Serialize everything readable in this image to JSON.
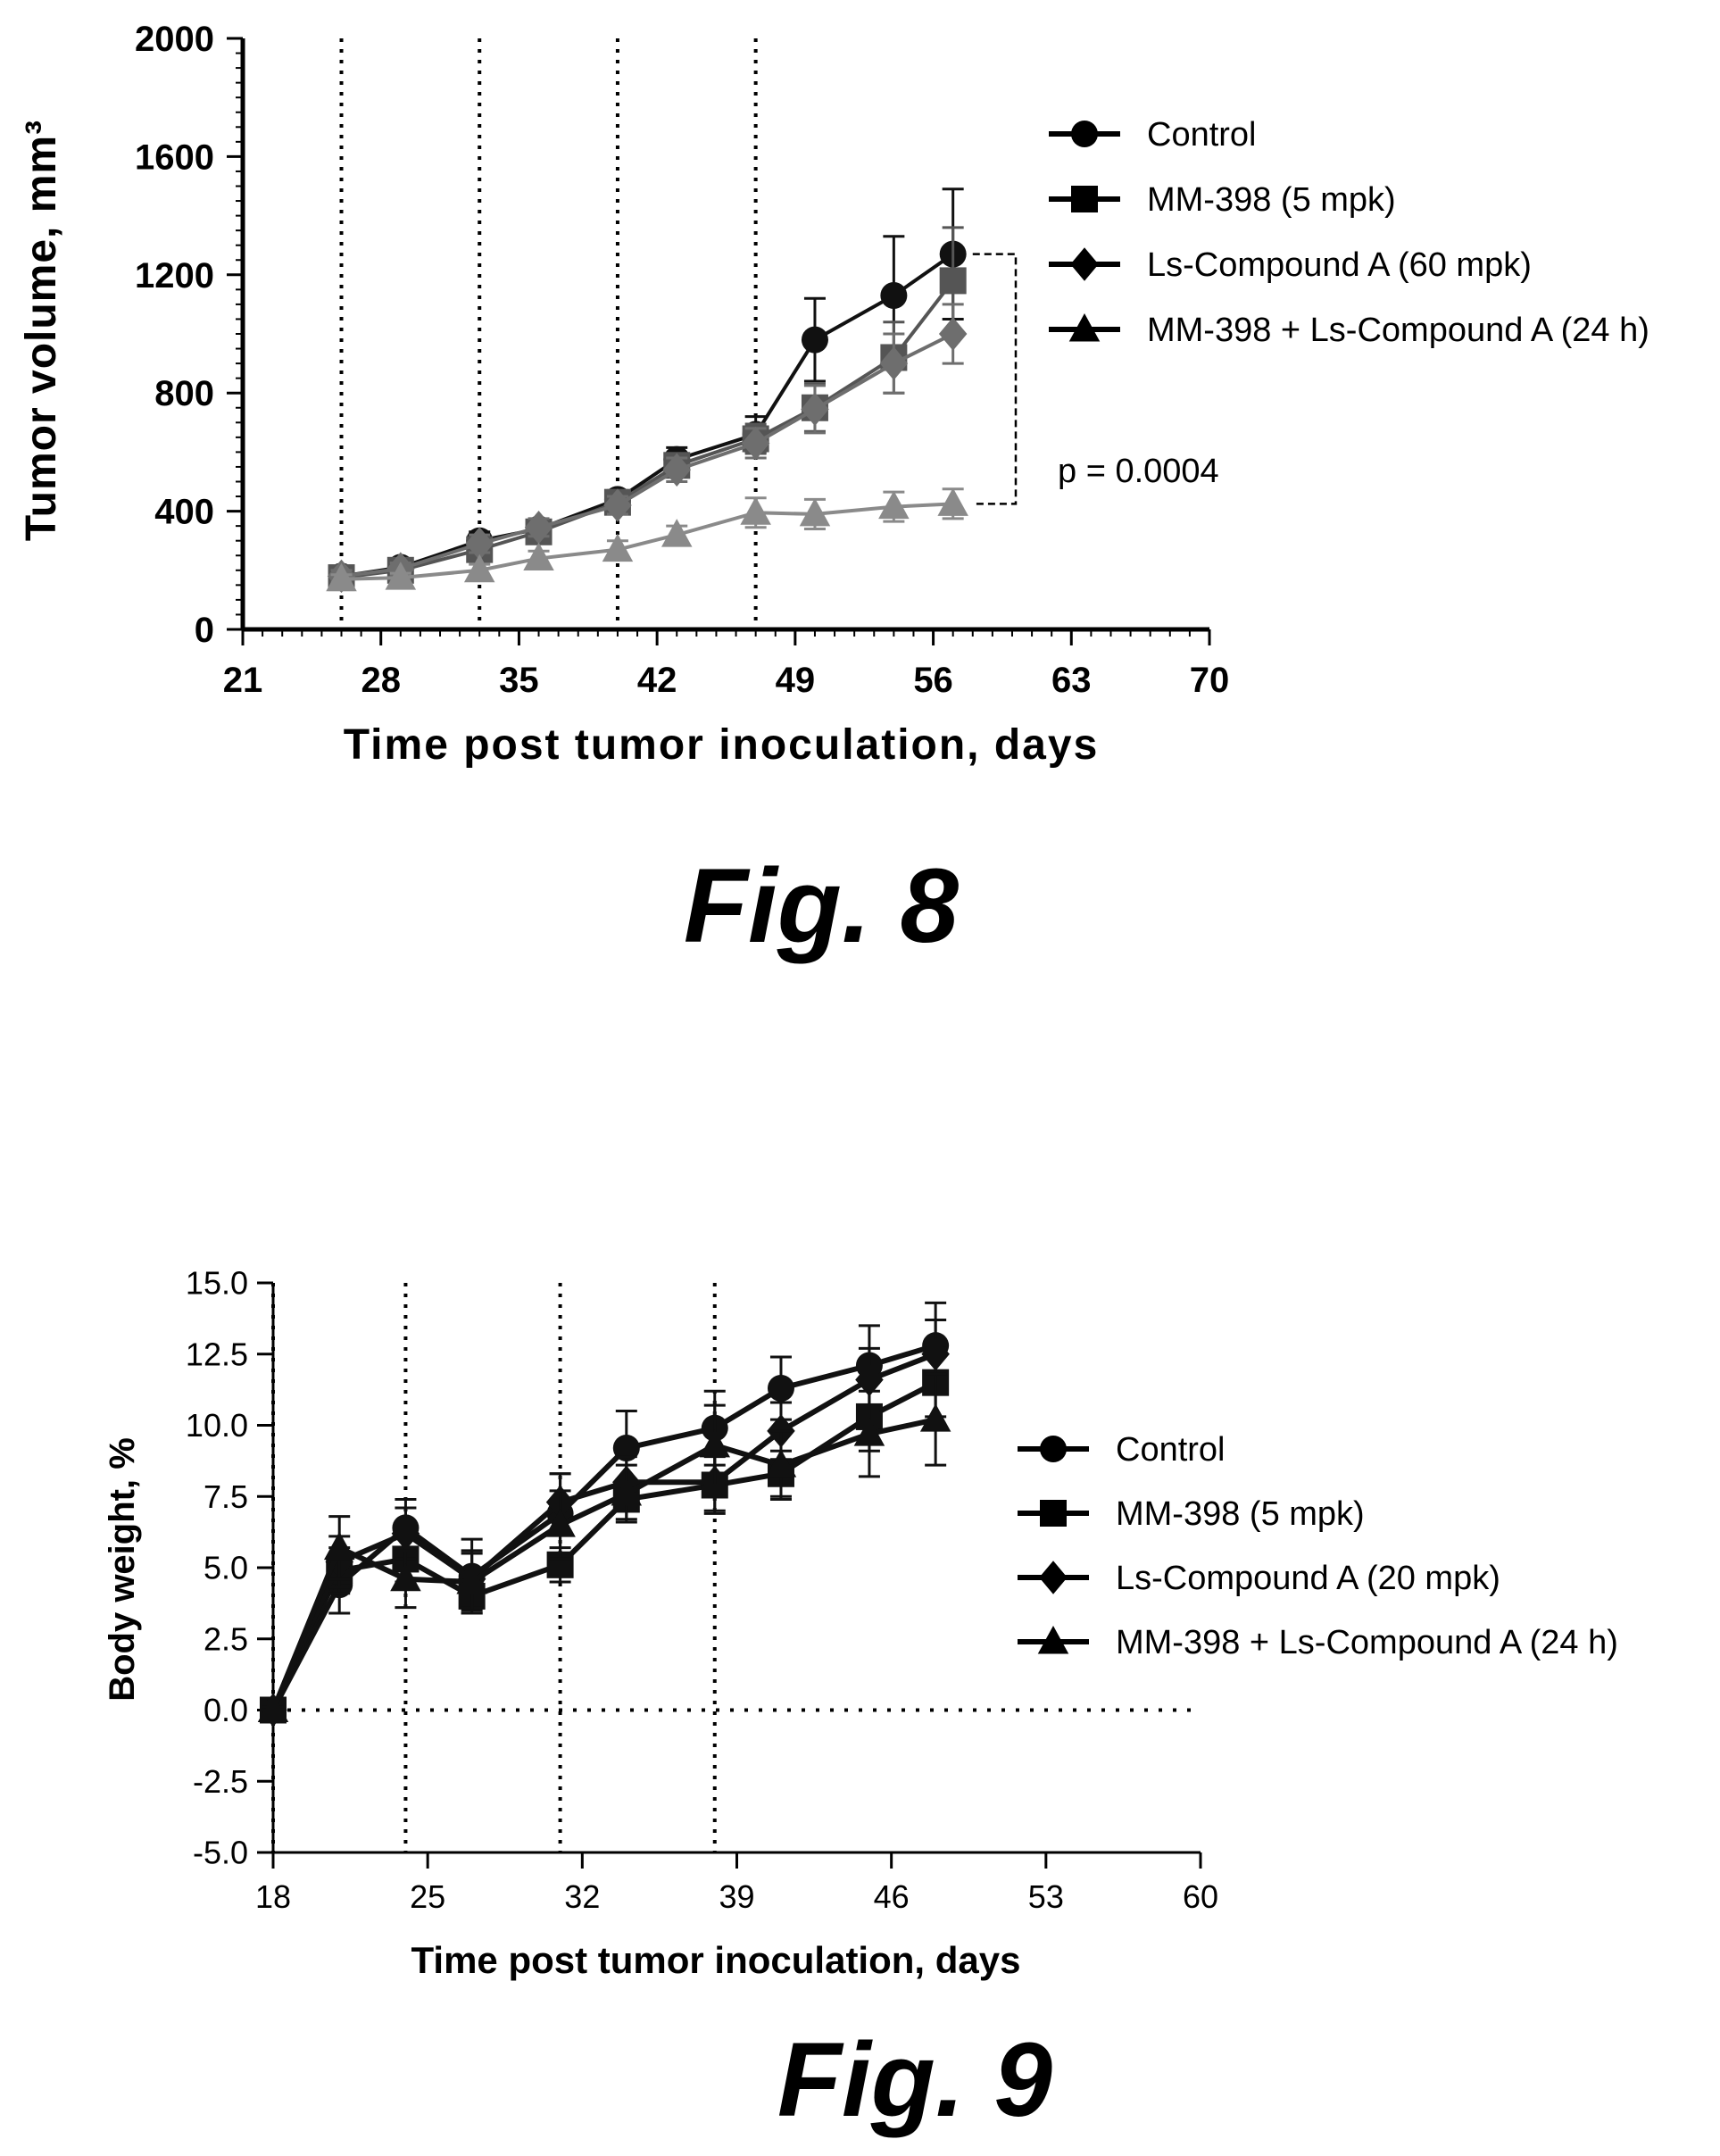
{
  "figures": [
    {
      "caption": "Fig. 8",
      "chart_data": {
        "type": "line",
        "title": "",
        "xlabel": "Time post tumor inoculation, days",
        "ylabel": "Tumor volume, mm³",
        "xlim": [
          21,
          70
        ],
        "ylim": [
          0,
          2000
        ],
        "x_ticks": [
          21,
          28,
          35,
          42,
          49,
          56,
          63,
          70
        ],
        "y_ticks": [
          0,
          400,
          800,
          1200,
          1600,
          2000
        ],
        "y_tick_labels": [
          "0",
          "400",
          "800",
          "1200",
          "1600",
          "2000"
        ],
        "grid": false,
        "legend_position": "top-right",
        "dosing_days": [
          26,
          33,
          40,
          47
        ],
        "series": [
          {
            "name": "Control",
            "marker": "circle",
            "color": "#111111",
            "x": [
              26,
              29,
              33,
              36,
              40,
              43,
              47,
              50,
              54,
              57
            ],
            "y": [
              180,
              210,
              300,
              340,
              440,
              575,
              660,
              980,
              1130,
              1270
            ],
            "err": [
              20,
              20,
              30,
              30,
              30,
              40,
              60,
              140,
              200,
              220
            ]
          },
          {
            "name": "MM-398 (5 mpk)",
            "marker": "square",
            "color": "#555555",
            "x": [
              26,
              29,
              33,
              36,
              40,
              43,
              47,
              50,
              54,
              57
            ],
            "y": [
              175,
              200,
              270,
              330,
              430,
              555,
              645,
              750,
              920,
              1180
            ],
            "err": [
              20,
              20,
              30,
              30,
              30,
              40,
              50,
              80,
              120,
              180
            ]
          },
          {
            "name": "Ls-Compound A (60 mpk)",
            "marker": "diamond",
            "color": "#6e6e6e",
            "x": [
              26,
              29,
              33,
              36,
              40,
              43,
              47,
              50,
              54,
              57
            ],
            "y": [
              180,
              205,
              290,
              345,
              420,
              540,
              630,
              745,
              900,
              1000
            ],
            "err": [
              20,
              20,
              30,
              30,
              30,
              40,
              50,
              80,
              100,
              100
            ]
          },
          {
            "name": "MM-398 + Ls-Compound A (24 h)",
            "marker": "triangle",
            "color": "#8a8a8a",
            "x": [
              26,
              29,
              33,
              36,
              40,
              43,
              47,
              50,
              54,
              57
            ],
            "y": [
              170,
              175,
              200,
              240,
              270,
              320,
              395,
              390,
              415,
              425
            ],
            "err": [
              15,
              15,
              20,
              25,
              30,
              30,
              50,
              50,
              50,
              50
            ]
          }
        ],
        "annotation": {
          "text": "p = 0.0004"
        }
      }
    },
    {
      "caption": "Fig. 9",
      "chart_data": {
        "type": "line",
        "title": "",
        "xlabel": "Time post tumor inoculation, days",
        "ylabel": "Body weight, %",
        "xlim": [
          18,
          60
        ],
        "ylim": [
          -5,
          15
        ],
        "x_ticks": [
          18,
          25,
          32,
          39,
          46,
          53,
          60
        ],
        "y_ticks": [
          -5,
          -2.5,
          0,
          2.5,
          5,
          7.5,
          10,
          12.5,
          15
        ],
        "y_tick_labels": [
          "-5.0",
          "-2.5",
          "0.0",
          "2.5",
          "5.0",
          "7.5",
          "10.0",
          "12.5",
          "15.0"
        ],
        "grid": false,
        "legend_position": "right",
        "dosing_days": [
          18,
          24,
          31,
          38
        ],
        "series": [
          {
            "name": "Control",
            "marker": "circle",
            "color": "#111111",
            "x": [
              18,
              21,
              24,
              27,
              31,
              34,
              38,
              41,
              45,
              48
            ],
            "y": [
              0,
              4.4,
              6.4,
              4.7,
              6.9,
              9.2,
              9.9,
              11.3,
              12.1,
              12.8
            ],
            "err": [
              0.1,
              1.0,
              1.0,
              1.3,
              1.4,
              1.3,
              1.3,
              1.1,
              1.4,
              1.5
            ]
          },
          {
            "name": "MM-398 (5 mpk)",
            "marker": "square",
            "color": "#111111",
            "x": [
              18,
              21,
              24,
              27,
              31,
              34,
              38,
              41,
              45,
              48
            ],
            "y": [
              0,
              4.9,
              5.3,
              4.0,
              5.1,
              7.4,
              7.9,
              8.3,
              10.3,
              11.5
            ],
            "err": [
              0.1,
              0.8,
              0.8,
              0.6,
              0.6,
              0.7,
              1.0,
              0.8,
              1.2,
              1.2
            ]
          },
          {
            "name": "Ls-Compound A (20 mpk)",
            "marker": "diamond",
            "color": "#111111",
            "x": [
              18,
              21,
              24,
              27,
              31,
              34,
              38,
              41,
              45,
              48
            ],
            "y": [
              0,
              5.2,
              6.2,
              4.6,
              7.3,
              8.0,
              8.0,
              9.8,
              11.6,
              12.5
            ],
            "err": [
              0.1,
              0.9,
              0.9,
              1.0,
              1.0,
              0.9,
              1.0,
              1.0,
              1.1,
              1.2
            ]
          },
          {
            "name": "MM-398 + Ls-Compound A (24 h)",
            "marker": "triangle",
            "color": "#111111",
            "x": [
              18,
              21,
              24,
              27,
              31,
              34,
              38,
              41,
              45,
              48
            ],
            "y": [
              0,
              5.7,
              4.6,
              4.5,
              6.5,
              7.6,
              9.3,
              8.6,
              9.7,
              10.2
            ],
            "err": [
              0.1,
              1.1,
              1.0,
              1.0,
              1.2,
              1.0,
              1.4,
              1.2,
              1.5,
              1.6
            ]
          }
        ]
      }
    }
  ]
}
